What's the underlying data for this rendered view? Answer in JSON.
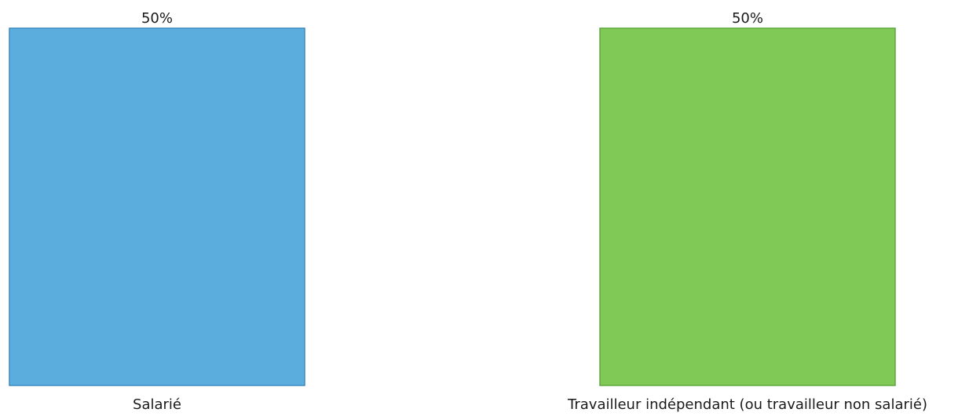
{
  "chart_data": {
    "type": "bar",
    "categories": [
      "Salarié",
      "Travailleur indépendant (ou travailleur non salarié)"
    ],
    "values": [
      50,
      50
    ],
    "data_labels": [
      "50%",
      "50%"
    ],
    "ylim": [
      0,
      50
    ],
    "grid": false,
    "legend": "none",
    "colors": [
      "#5AADDD",
      "#81C957"
    ],
    "border_colors": [
      "#3D8CC4",
      "#5EA83A"
    ]
  }
}
